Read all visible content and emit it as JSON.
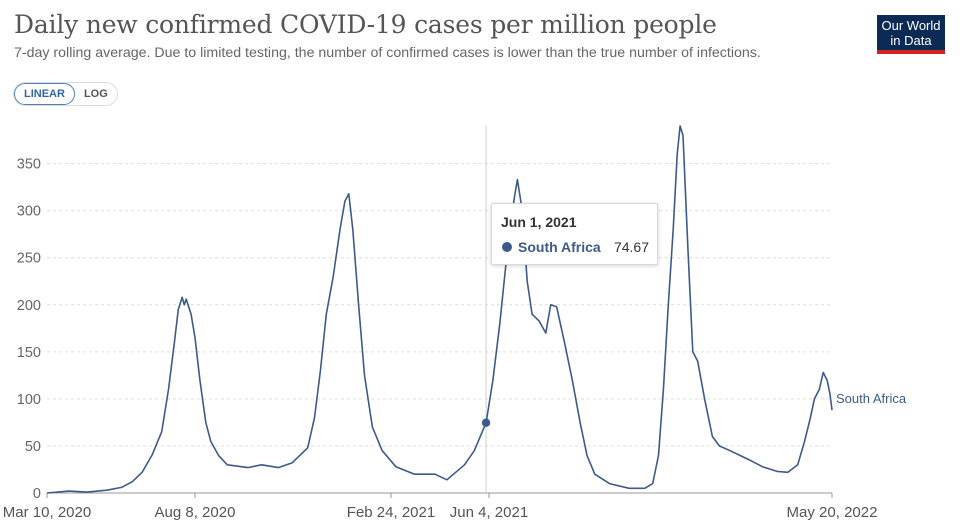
{
  "header": {
    "title": "Daily new confirmed COVID-19 cases per million people",
    "subtitle": "7-day rolling average. Due to limited testing, the number of confirmed cases is lower than the true number of infections."
  },
  "logo": {
    "line1": "Our World",
    "line2": "in Data"
  },
  "controls": {
    "linear_label": "LINEAR",
    "log_label": "LOG",
    "active": "LINEAR"
  },
  "tooltip": {
    "date": "Jun 1, 2021",
    "series": "South Africa",
    "value": "74.67"
  },
  "colors": {
    "series": "#3d5a8a",
    "logo_bg": "#0b2b55",
    "logo_accent": "#ce261e"
  },
  "chart_data": {
    "type": "line",
    "title": "Daily new confirmed COVID-19 cases per million people",
    "ylim": [
      0,
      390
    ],
    "yticks": [
      0,
      50,
      100,
      150,
      200,
      250,
      300,
      350
    ],
    "xlim": [
      "2020-03-10",
      "2022-05-20"
    ],
    "xticks": [
      {
        "date": "2020-03-10",
        "label": "Mar 10, 2020"
      },
      {
        "date": "2020-08-08",
        "label": "Aug 8, 2020"
      },
      {
        "date": "2021-02-24",
        "label": "Feb 24, 2021"
      },
      {
        "date": "2021-06-04",
        "label": "Jun 4, 2021"
      },
      {
        "date": "2022-05-20",
        "label": "May 20, 2022"
      }
    ],
    "hover_date": "2021-06-01",
    "series": [
      {
        "name": "South Africa",
        "end_label": "South Africa",
        "points": [
          [
            "2020-03-10",
            0
          ],
          [
            "2020-04-01",
            2
          ],
          [
            "2020-04-20",
            1
          ],
          [
            "2020-05-10",
            3
          ],
          [
            "2020-05-25",
            6
          ],
          [
            "2020-06-05",
            12
          ],
          [
            "2020-06-15",
            22
          ],
          [
            "2020-06-25",
            40
          ],
          [
            "2020-07-05",
            65
          ],
          [
            "2020-07-12",
            110
          ],
          [
            "2020-07-18",
            160
          ],
          [
            "2020-07-22",
            195
          ],
          [
            "2020-07-26",
            208
          ],
          [
            "2020-07-28",
            200
          ],
          [
            "2020-07-30",
            206
          ],
          [
            "2020-08-04",
            190
          ],
          [
            "2020-08-08",
            165
          ],
          [
            "2020-08-13",
            120
          ],
          [
            "2020-08-19",
            75
          ],
          [
            "2020-08-24",
            55
          ],
          [
            "2020-09-01",
            40
          ],
          [
            "2020-09-10",
            30
          ],
          [
            "2020-10-01",
            27
          ],
          [
            "2020-10-15",
            30
          ],
          [
            "2020-11-01",
            27
          ],
          [
            "2020-11-15",
            32
          ],
          [
            "2020-12-01",
            48
          ],
          [
            "2020-12-08",
            80
          ],
          [
            "2020-12-14",
            130
          ],
          [
            "2020-12-20",
            190
          ],
          [
            "2020-12-27",
            230
          ],
          [
            "2021-01-03",
            280
          ],
          [
            "2021-01-08",
            310
          ],
          [
            "2021-01-12",
            318
          ],
          [
            "2021-01-16",
            280
          ],
          [
            "2021-01-22",
            200
          ],
          [
            "2021-01-28",
            125
          ],
          [
            "2021-02-05",
            70
          ],
          [
            "2021-02-15",
            45
          ],
          [
            "2021-03-01",
            28
          ],
          [
            "2021-03-20",
            20
          ],
          [
            "2021-04-10",
            20
          ],
          [
            "2021-04-22",
            14
          ],
          [
            "2021-05-01",
            22
          ],
          [
            "2021-05-10",
            30
          ],
          [
            "2021-05-20",
            45
          ],
          [
            "2021-06-01",
            74.67
          ],
          [
            "2021-06-08",
            120
          ],
          [
            "2021-06-15",
            180
          ],
          [
            "2021-06-22",
            250
          ],
          [
            "2021-06-30",
            315
          ],
          [
            "2021-07-03",
            333
          ],
          [
            "2021-07-08",
            300
          ],
          [
            "2021-07-13",
            225
          ],
          [
            "2021-07-18",
            190
          ],
          [
            "2021-07-25",
            183
          ],
          [
            "2021-08-01",
            170
          ],
          [
            "2021-08-06",
            200
          ],
          [
            "2021-08-12",
            198
          ],
          [
            "2021-08-20",
            160
          ],
          [
            "2021-08-28",
            120
          ],
          [
            "2021-09-05",
            75
          ],
          [
            "2021-09-12",
            40
          ],
          [
            "2021-09-20",
            20
          ],
          [
            "2021-10-05",
            10
          ],
          [
            "2021-10-25",
            5
          ],
          [
            "2021-11-10",
            5
          ],
          [
            "2021-11-18",
            10
          ],
          [
            "2021-11-24",
            40
          ],
          [
            "2021-11-29",
            110
          ],
          [
            "2021-12-04",
            200
          ],
          [
            "2021-12-09",
            280
          ],
          [
            "2021-12-13",
            360
          ],
          [
            "2021-12-16",
            390
          ],
          [
            "2021-12-19",
            380
          ],
          [
            "2021-12-24",
            260
          ],
          [
            "2021-12-29",
            150
          ],
          [
            "2022-01-03",
            140
          ],
          [
            "2022-01-10",
            100
          ],
          [
            "2022-01-18",
            60
          ],
          [
            "2022-01-25",
            50
          ],
          [
            "2022-02-05",
            45
          ],
          [
            "2022-02-15",
            40
          ],
          [
            "2022-02-25",
            35
          ],
          [
            "2022-03-10",
            28
          ],
          [
            "2022-03-25",
            23
          ],
          [
            "2022-04-05",
            22
          ],
          [
            "2022-04-15",
            30
          ],
          [
            "2022-04-22",
            55
          ],
          [
            "2022-04-28",
            80
          ],
          [
            "2022-05-02",
            100
          ],
          [
            "2022-05-07",
            110
          ],
          [
            "2022-05-11",
            128
          ],
          [
            "2022-05-15",
            120
          ],
          [
            "2022-05-18",
            105
          ],
          [
            "2022-05-20",
            88
          ]
        ]
      }
    ]
  }
}
